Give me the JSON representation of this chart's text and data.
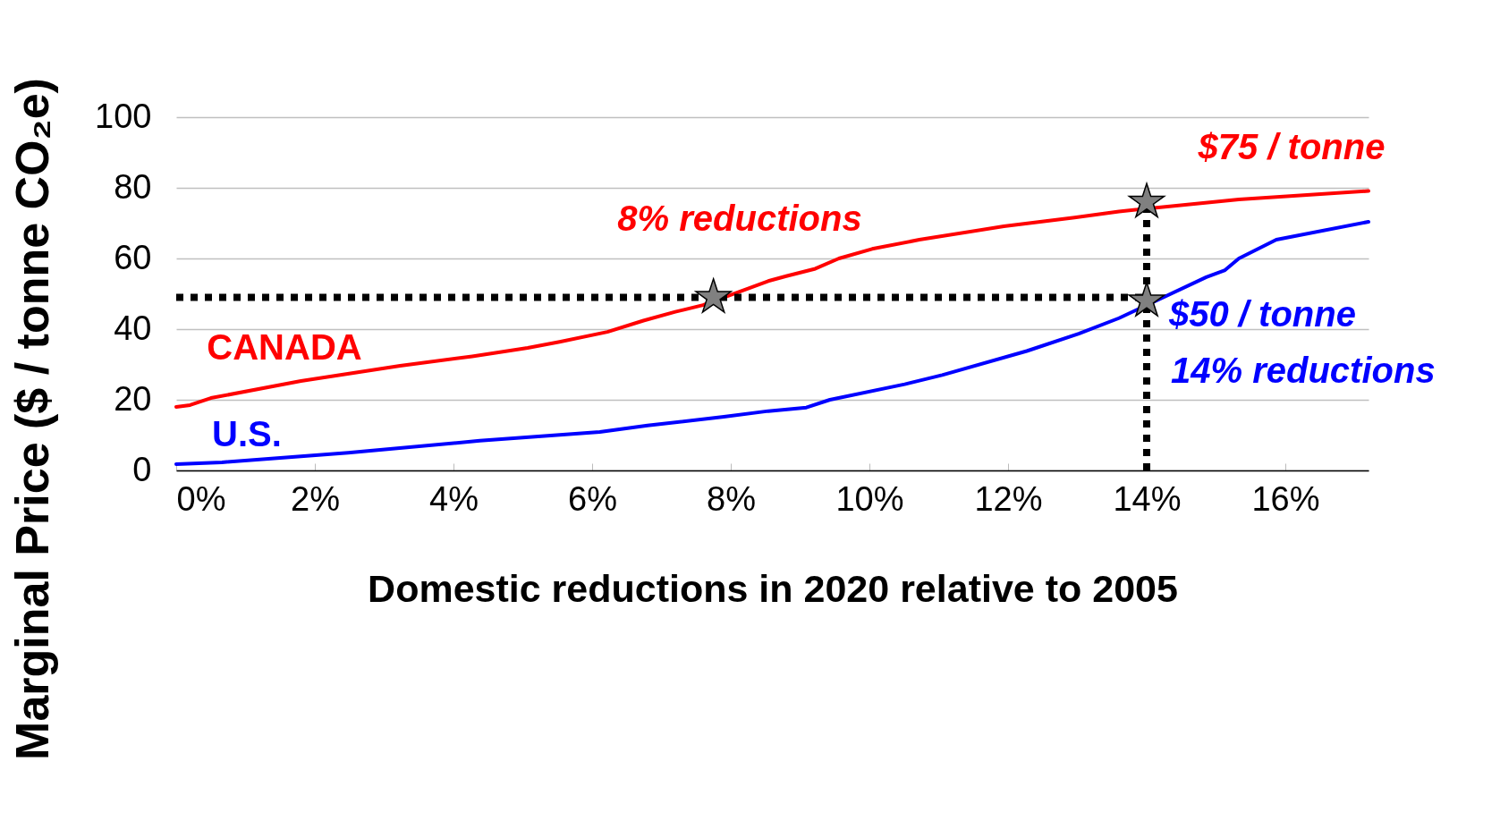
{
  "chart_data": {
    "type": "line",
    "xlabel": "Domestic reductions in 2020 relative to 2005",
    "ylabel": "Marginal Price ($ / tonne CO₂e)",
    "xlim": [
      0,
      17.2
    ],
    "xticks": [
      {
        "value": 0,
        "label": "0%"
      },
      {
        "value": 2,
        "label": "2%"
      },
      {
        "value": 4,
        "label": "4%"
      },
      {
        "value": 6,
        "label": "6%"
      },
      {
        "value": 8,
        "label": "8%"
      },
      {
        "value": 10,
        "label": "10%"
      },
      {
        "value": 12,
        "label": "12%"
      },
      {
        "value": 14,
        "label": "14%"
      },
      {
        "value": 16,
        "label": "16%"
      }
    ],
    "ylim": [
      0,
      100
    ],
    "yticks": [
      0,
      20,
      40,
      60,
      80,
      100
    ],
    "grid": "y",
    "line_style": "solid",
    "marker": "none",
    "series": [
      {
        "name": "CANADA",
        "color": "#ff0000",
        "x": [
          0,
          0.2,
          0.5,
          1.8,
          3.23,
          4.27,
          5.07,
          5.53,
          6.22,
          6.74,
          7.2,
          7.6,
          8.54,
          8.8,
          9.22,
          9.56,
          10.04,
          10.72,
          11.94,
          12.96,
          13.6,
          15.33,
          17.2
        ],
        "values": [
          18,
          18.5,
          20.5,
          25.3,
          29.6,
          32.3,
          34.7,
          36.4,
          39.2,
          42.4,
          44.9,
          46.8,
          53.6,
          55,
          57.1,
          60,
          62.7,
          65.3,
          69.1,
          71.6,
          73.3,
          76.7,
          79.1
        ]
      },
      {
        "name": "U.S.",
        "color": "#0000ff",
        "x": [
          0,
          0.66,
          2.48,
          4.38,
          6.11,
          6.8,
          7.9,
          8.54,
          9.09,
          9.43,
          10.51,
          11.05,
          12.27,
          13.02,
          13.6,
          14.86,
          15.13,
          15.33,
          15.87,
          17.2
        ],
        "values": [
          1.8,
          2.3,
          5,
          8.4,
          10.9,
          12.7,
          15.2,
          16.8,
          17.8,
          20,
          24.4,
          27,
          33.8,
          38.7,
          43.1,
          54.7,
          56.7,
          60,
          65.3,
          70.4
        ]
      },
      {
        "type": "line",
        "line_style": "dotted",
        "color": "#000000",
        "x": [
          0,
          14
        ],
        "values": [
          49,
          49
        ]
      },
      {
        "type": "line",
        "line_style": "dotted",
        "color": "#000000",
        "x": [
          14,
          14
        ],
        "values": [
          0,
          76
        ]
      },
      {
        "type": "scatter",
        "marker": "star",
        "color": "#808080",
        "x": [
          7.75,
          14,
          14
        ],
        "values": [
          49,
          48,
          76
        ]
      }
    ],
    "annotations": [
      "$75 / tonne",
      "8% reductions",
      "$50 / tonne",
      "14% reductions"
    ]
  }
}
